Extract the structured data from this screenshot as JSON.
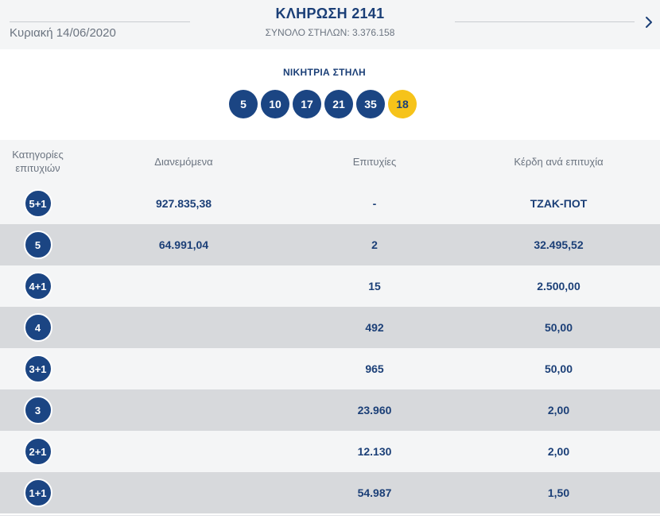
{
  "header": {
    "date": "Κυριακή 14/06/2020",
    "draw_title": "ΚΛΗΡΩΣΗ 2141",
    "total_columns": "ΣΥΝΟΛΟ ΣΤΗΛΩΝ: 3.376.158",
    "next_icon": "chevron-right-icon"
  },
  "winning": {
    "label": "ΝΙΚΗΤΡΙΑ ΣΤΗΛΗ",
    "numbers": [
      "5",
      "10",
      "17",
      "21",
      "35"
    ],
    "joker": "18",
    "colors": {
      "number_ball": "#1b4583",
      "joker_ball": "#f6c31a"
    }
  },
  "table": {
    "headers": {
      "category": "Κατηγορίες επιτυχιών",
      "distributed": "Διανεμόμενα",
      "winners": "Επιτυχίες",
      "prize": "Κέρδη ανά επιτυχία"
    },
    "rows": [
      {
        "category": "5+1",
        "distributed": "927.835,38",
        "winners": "-",
        "prize": "ΤΖΑΚ-ΠΟΤ"
      },
      {
        "category": "5",
        "distributed": "64.991,04",
        "winners": "2",
        "prize": "32.495,52"
      },
      {
        "category": "4+1",
        "distributed": "",
        "winners": "15",
        "prize": "2.500,00"
      },
      {
        "category": "4",
        "distributed": "",
        "winners": "492",
        "prize": "50,00"
      },
      {
        "category": "3+1",
        "distributed": "",
        "winners": "965",
        "prize": "50,00"
      },
      {
        "category": "3",
        "distributed": "",
        "winners": "23.960",
        "prize": "2,00"
      },
      {
        "category": "2+1",
        "distributed": "",
        "winners": "12.130",
        "prize": "2,00"
      },
      {
        "category": "1+1",
        "distributed": "",
        "winners": "54.987",
        "prize": "1,50"
      }
    ]
  }
}
